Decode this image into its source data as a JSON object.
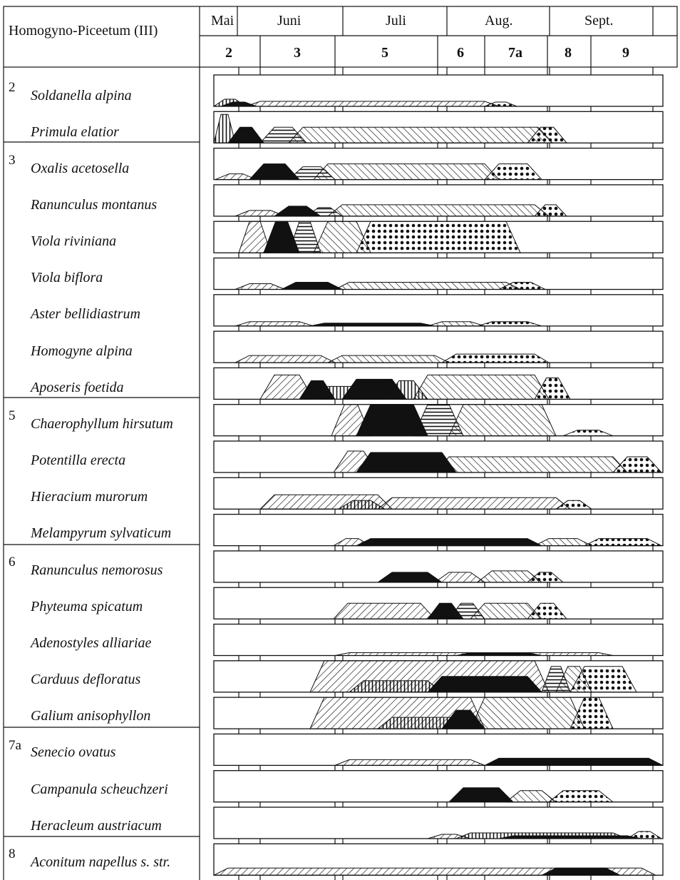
{
  "title": "Homogyno-Piceetum (III)",
  "months": [
    "Mai",
    "Juni",
    "Juli",
    "Aug.",
    "Sept."
  ],
  "phases": [
    "2",
    "3",
    "5",
    "6",
    "7a",
    "8",
    "9"
  ],
  "groups": [
    "2",
    "3",
    "5",
    "6",
    "7a",
    "8"
  ],
  "species": [
    "Soldanella alpina",
    "Primula elatior",
    "Oxalis acetosella",
    "Ranunculus montanus",
    "Viola riviniana",
    "Viola biflora",
    "Aster bellidiastrum",
    "Homogyne alpina",
    "Aposeris foetida",
    "Chaerophyllum hirsutum",
    "Potentilla erecta",
    "Hieracium murorum",
    "Melampyrum sylvaticum",
    "Ranunculus nemorosus",
    "Phyteuma spicatum",
    "Adenostyles alliariae",
    "Carduus defloratus",
    "Galium anisophyllon",
    "Senecio ovatus",
    "Campanula scheuchzeri",
    "Heracleum austriacum",
    "Aconitum napellus s. str."
  ],
  "colors": {
    "ink": "#111111",
    "paper": "#ffffff"
  }
}
